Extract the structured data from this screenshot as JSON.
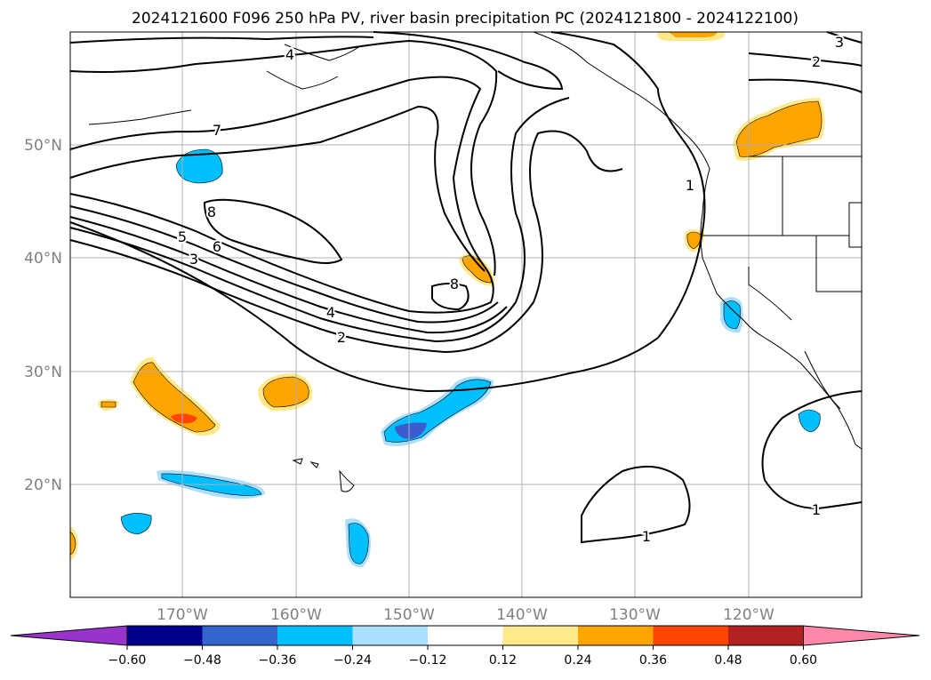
{
  "title": "2024121600 F096 250 hPa PV, river basin precipitation PC (2024121800 - 2024122100)",
  "map": {
    "lat_ticks": [
      "50°N",
      "40°N",
      "30°N",
      "20°N"
    ],
    "lon_ticks": [
      "170°W",
      "160°W",
      "150°W",
      "140°W",
      "130°W",
      "120°W"
    ],
    "contour_labels": [
      "4",
      "7",
      "8",
      "5",
      "6",
      "3",
      "4",
      "2",
      "8",
      "1",
      "2",
      "3",
      "1",
      "1"
    ]
  },
  "colorbar": {
    "ticks": [
      "−0.60",
      "−0.48",
      "−0.36",
      "−0.24",
      "−0.12",
      "0.12",
      "0.24",
      "0.36",
      "0.48",
      "0.60"
    ],
    "colors": [
      "#9933cc",
      "#00008b",
      "#3366cc",
      "#00bfff",
      "#aadfff",
      "#ffffff",
      "#ffe98a",
      "#ffa500",
      "#ff4500",
      "#b22222",
      "#ff88aa"
    ]
  },
  "colors": {
    "neg_light": "#aadfff",
    "neg_mid": "#00bfff",
    "neg_strong": "#3b5bcf",
    "pos_light": "#ffe98a",
    "pos_mid": "#ffa500",
    "pos_strong": "#ff4500",
    "grid": "#b0b0b0"
  }
}
